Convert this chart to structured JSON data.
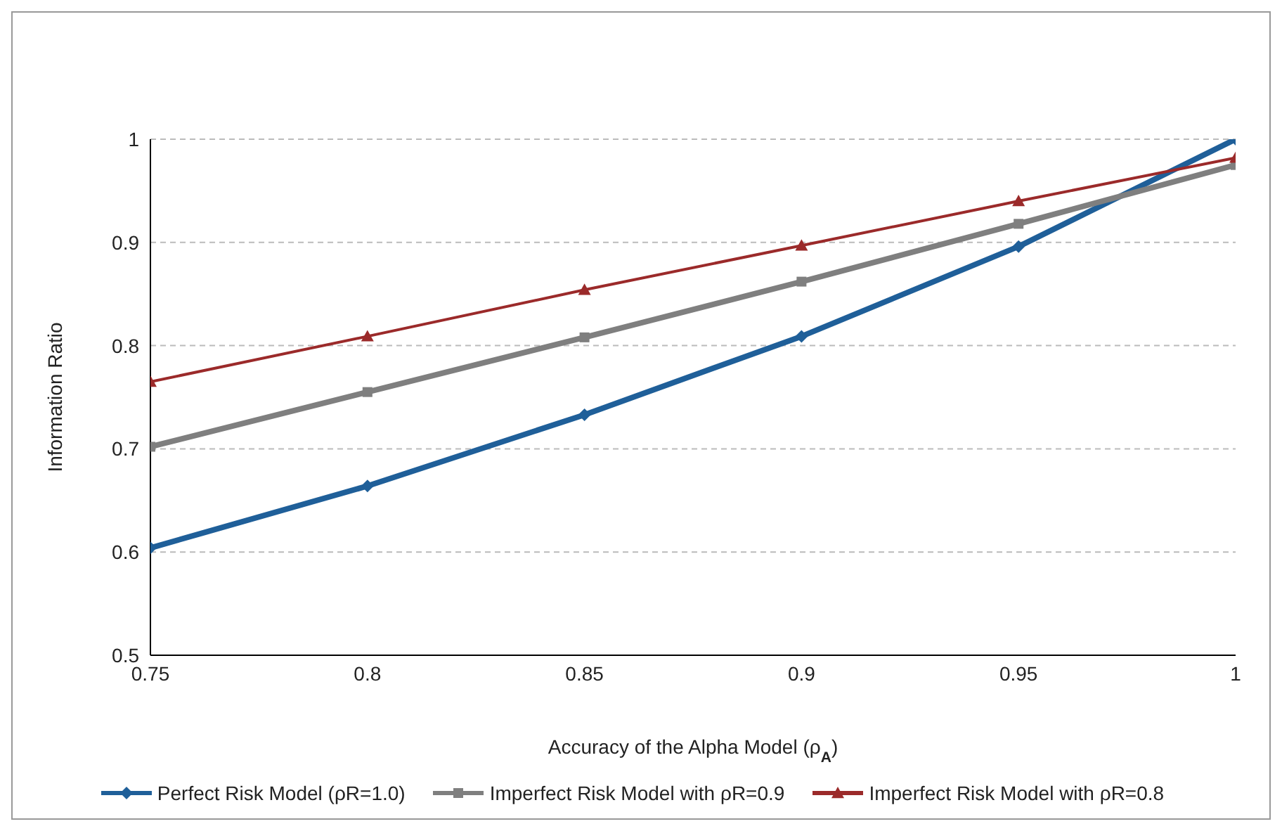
{
  "chart_data": {
    "type": "line",
    "xlabel": "Accuracy of the Alpha Model (ρ$_{A}$)",
    "ylabel": "Information Ratio",
    "x": [
      0.75,
      0.8,
      0.85,
      0.9,
      0.95,
      1
    ],
    "series": [
      {
        "name": "Perfect Risk Model (ρR=1.0)",
        "color": "#1f5f99",
        "marker": "diamond",
        "values": [
          0.604,
          0.664,
          0.733,
          0.809,
          0.896,
          1.0
        ]
      },
      {
        "name": "Imperfect Risk Model with ρR=0.9",
        "color": "#7f7f7f",
        "marker": "square",
        "values": [
          0.702,
          0.755,
          0.808,
          0.862,
          0.918,
          0.975
        ]
      },
      {
        "name": "Imperfect Risk Model with ρR=0.8",
        "color": "#9b2a2a",
        "marker": "triangle",
        "values": [
          0.765,
          0.809,
          0.854,
          0.897,
          0.94,
          0.982
        ]
      }
    ],
    "xlim": [
      0.75,
      1
    ],
    "xticks": [
      0.75,
      0.8,
      0.85,
      0.9,
      0.95,
      1
    ],
    "ylim": [
      0.5,
      1
    ],
    "yticks": [
      0.5,
      0.6,
      0.7,
      0.8,
      0.9,
      1
    ],
    "grid": "y",
    "legend": "bottom",
    "line_style": "solid"
  }
}
